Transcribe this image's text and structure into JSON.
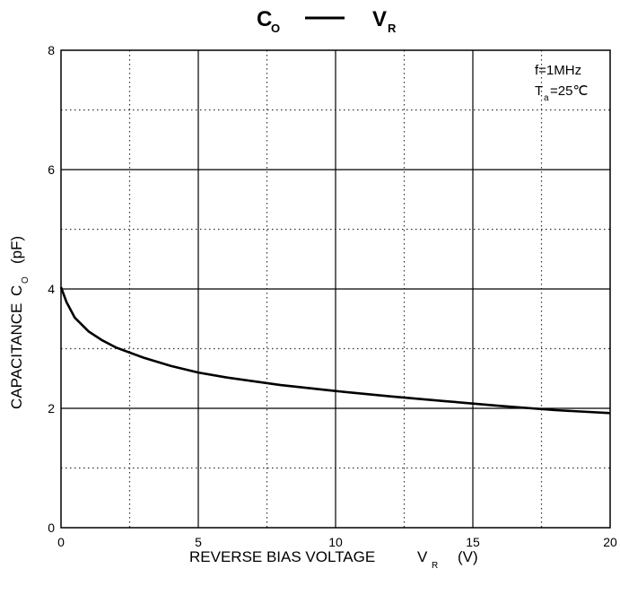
{
  "chart_data": {
    "type": "line",
    "title": {
      "left": "C",
      "left_sub": "O",
      "dash": "—",
      "right": "V",
      "right_sub": "R"
    },
    "xlabel": {
      "text": "REVERSE BIAS VOLTAGE",
      "symbol": "V",
      "symbol_sub": "R",
      "unit": "(V)"
    },
    "ylabel": {
      "text": "CAPACITANCE",
      "symbol": "C",
      "symbol_sub": "O",
      "unit": "(pF)"
    },
    "xlim": [
      0,
      20
    ],
    "ylim": [
      0,
      8
    ],
    "x_ticks": [
      0,
      5,
      10,
      15,
      20
    ],
    "y_ticks": [
      0,
      2,
      4,
      6,
      8
    ],
    "x_tick_labels": [
      "0",
      "5",
      "10",
      "15",
      "20"
    ],
    "y_tick_labels": [
      "0",
      "2",
      "4",
      "6",
      "8"
    ],
    "x_minor_ticks": [
      2.5,
      7.5,
      12.5,
      17.5
    ],
    "y_minor_ticks": [
      1,
      3,
      5,
      7
    ],
    "grid": "major solid, minor dotted",
    "annotations": {
      "line1": "f=1MHz",
      "line2_main": "T",
      "line2_sub": "a",
      "line2_rest": "=25℃"
    },
    "series": [
      {
        "x": [
          0,
          0.2,
          0.5,
          1,
          1.5,
          2,
          3,
          4,
          5,
          6,
          8,
          10,
          12,
          14,
          16,
          18,
          20
        ],
        "y": [
          4.03,
          3.78,
          3.52,
          3.29,
          3.14,
          3.02,
          2.85,
          2.71,
          2.6,
          2.52,
          2.39,
          2.29,
          2.2,
          2.12,
          2.04,
          1.97,
          1.92
        ]
      }
    ]
  }
}
